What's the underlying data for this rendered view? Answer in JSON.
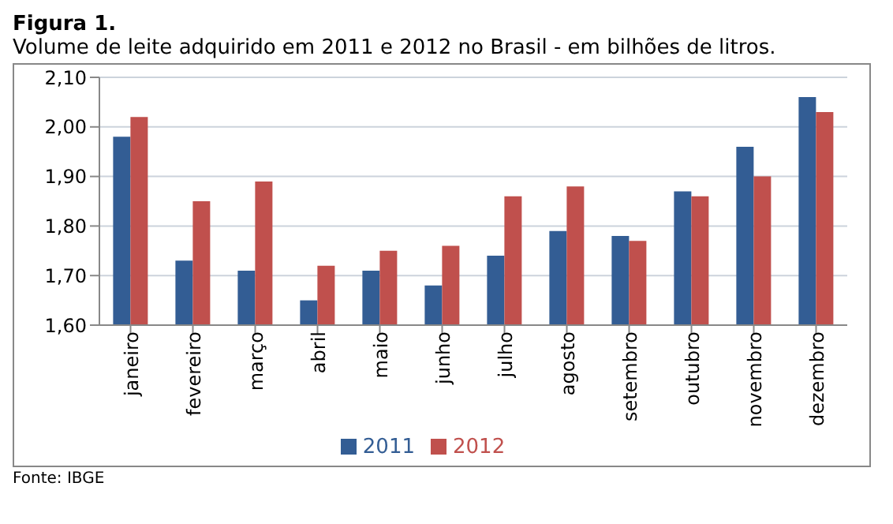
{
  "chart_data": {
    "type": "bar",
    "title": "Figura 1.",
    "subtitle": "Volume de leite adquirido em 2011 e 2012 no Brasil - em bilhões de litros.",
    "categories": [
      "janeiro",
      "fevereiro",
      "março",
      "abril",
      "maio",
      "junho",
      "julho",
      "agosto",
      "setembro",
      "outubro",
      "novembro",
      "dezembro"
    ],
    "series": [
      {
        "name": "2011",
        "color": "#335d94",
        "values": [
          1.98,
          1.73,
          1.71,
          1.65,
          1.71,
          1.68,
          1.74,
          1.79,
          1.78,
          1.87,
          1.96,
          2.06
        ]
      },
      {
        "name": "2012",
        "color": "#c0504d",
        "values": [
          2.02,
          1.85,
          1.89,
          1.72,
          1.75,
          1.76,
          1.86,
          1.88,
          1.77,
          1.86,
          1.9,
          2.03
        ]
      }
    ],
    "ylim": [
      1.6,
      2.1
    ],
    "yticks": [
      {
        "value": 1.6,
        "label": "1,60"
      },
      {
        "value": 1.7,
        "label": "1,70"
      },
      {
        "value": 1.8,
        "label": "1,80"
      },
      {
        "value": 1.9,
        "label": "1,90"
      },
      {
        "value": 2.0,
        "label": "2,00"
      },
      {
        "value": 2.1,
        "label": "2,10"
      }
    ],
    "grid": "y",
    "legend": "bottom",
    "annotations": [
      "Fonte: IBGE"
    ]
  }
}
